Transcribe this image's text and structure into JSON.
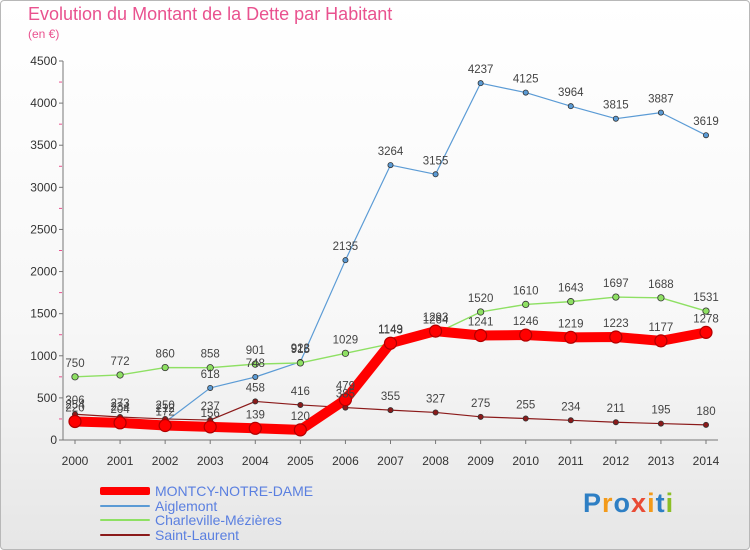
{
  "header": {
    "title": "Evolution du Montant de la Dette par Habitant",
    "subtitle": "(en €)"
  },
  "logo": {
    "text": "Proxiti",
    "colors": [
      "#2e7fc4",
      "#f39a1a",
      "#2e7fc4",
      "#e94b35",
      "#f39a1a",
      "#2e7fc4",
      "#8cbf26"
    ]
  },
  "chart_data": {
    "type": "line",
    "x": [
      "2000",
      "2001",
      "2002",
      "2003",
      "2004",
      "2005",
      "2006",
      "2007",
      "2008",
      "2009",
      "2010",
      "2011",
      "2012",
      "2013",
      "2014"
    ],
    "ylim": [
      0,
      4500
    ],
    "yticks": [
      0,
      500,
      1000,
      1500,
      2000,
      2500,
      3000,
      3500,
      4000,
      4500
    ],
    "grid": false,
    "legend_position": "bottom-left",
    "series": [
      {
        "name": "MONTCY-NOTRE-DAME",
        "color": "#ff0000",
        "values": [
          220,
          204,
          172,
          156,
          139,
          120,
          479,
          1149,
          1293,
          1241,
          1246,
          1219,
          1223,
          1177,
          1278
        ]
      },
      {
        "name": "Aiglemont",
        "color": "#5b9bd5",
        "values": [
          254,
          234,
          212,
          618,
          748,
          928,
          2135,
          3264,
          3155,
          4237,
          4125,
          3964,
          3815,
          3887,
          3619
        ]
      },
      {
        "name": "Charleville-Mézières",
        "color": "#8ee063",
        "values": [
          750,
          772,
          860,
          858,
          901,
          915,
          1029,
          1143,
          1264,
          1520,
          1610,
          1643,
          1697,
          1688,
          1531
        ]
      },
      {
        "name": "Saint-Laurent",
        "color": "#8b1a1a",
        "values": [
          306,
          273,
          250,
          237,
          458,
          416,
          385,
          355,
          327,
          275,
          255,
          234,
          211,
          195,
          180
        ]
      }
    ]
  }
}
